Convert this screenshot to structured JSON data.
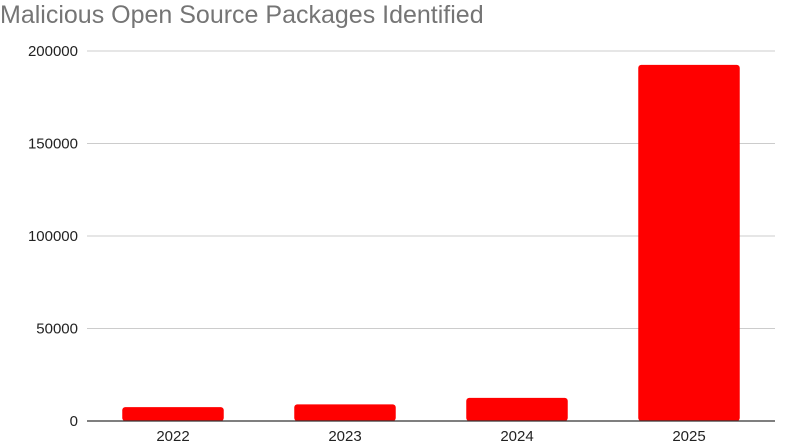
{
  "chart_data": {
    "type": "bar",
    "title": "Malicious Open Source Packages Identified",
    "categories": [
      "2022",
      "2023",
      "2024",
      "2025"
    ],
    "values": [
      7500,
      9000,
      12500,
      192500
    ],
    "xlabel": "",
    "ylabel": "",
    "ylim": [
      0,
      200000
    ],
    "yticks": [
      "0",
      "50000",
      "100000",
      "150000",
      "200000"
    ],
    "grid": true,
    "legend": "none",
    "bar_color": "#ff0000",
    "grid_color": "#cccccc"
  }
}
